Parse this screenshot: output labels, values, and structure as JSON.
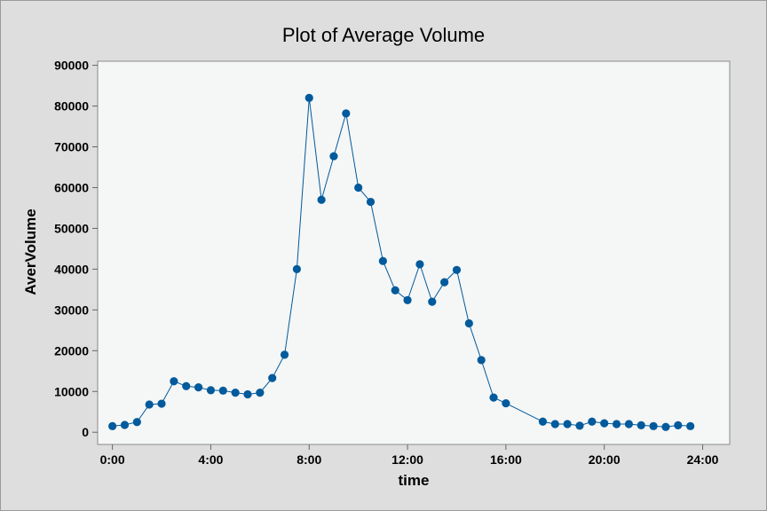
{
  "chart_data": {
    "type": "line",
    "title": "Plot of Average Volume",
    "xlabel": "time",
    "ylabel": "AverVolume",
    "xlim": [
      -0.6,
      25.1
    ],
    "ylim": [
      -3000,
      91000
    ],
    "x_ticks": [
      0,
      4,
      8,
      12,
      16,
      20,
      24
    ],
    "x_tick_labels": [
      "0:00",
      "4:00",
      "8:00",
      "12:00",
      "16:00",
      "20:00",
      "24:00"
    ],
    "y_ticks": [
      0,
      10000,
      20000,
      30000,
      40000,
      50000,
      60000,
      70000,
      80000,
      90000
    ],
    "y_tick_labels": [
      "0",
      "10000",
      "20000",
      "30000",
      "40000",
      "50000",
      "60000",
      "70000",
      "80000",
      "90000"
    ],
    "grid": false,
    "colors": {
      "series": "#005a9c",
      "plot_bg": "#f5f6f6",
      "figure_bg": "#dedede"
    },
    "series": [
      {
        "x": [
          0,
          0.5,
          1,
          1.5,
          2,
          2.5,
          3,
          3.5,
          4,
          4.5,
          5,
          5.5,
          6,
          6.5,
          7,
          7.5,
          8,
          8.5,
          9,
          9.5,
          10,
          10.5,
          11,
          11.5,
          12,
          12.5,
          13,
          13.5,
          14,
          14.5,
          15,
          15.5,
          16,
          17.5,
          18,
          18.5,
          19,
          19.5,
          20,
          20.5,
          21,
          21.5,
          22,
          22.5,
          23,
          23.5
        ],
        "y": [
          1500,
          1800,
          2500,
          6800,
          7000,
          12500,
          11300,
          11000,
          10300,
          10200,
          9700,
          9300,
          9700,
          13300,
          19000,
          40000,
          82000,
          57000,
          67700,
          78200,
          60000,
          56500,
          42000,
          34800,
          32400,
          41200,
          32000,
          36800,
          39800,
          26700,
          17700,
          8500,
          7100,
          2600,
          2000,
          2000,
          1600,
          2600,
          2200,
          2000,
          2000,
          1700,
          1500,
          1300,
          1700,
          1500
        ]
      }
    ]
  }
}
